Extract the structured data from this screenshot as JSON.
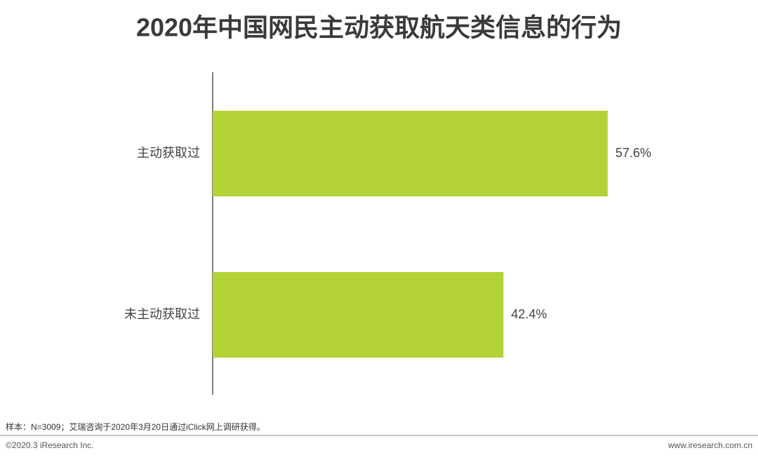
{
  "chart_data": {
    "type": "barh",
    "title": "2020年中国网民主动获取航天类信息的行为",
    "categories": [
      "主动获取过",
      "未主动获取过"
    ],
    "values": [
      57.6,
      42.4
    ],
    "value_labels": [
      "57.6%",
      "42.4%"
    ],
    "color": "#b2d235",
    "xlim": [
      0,
      70
    ],
    "note": "样本：N=3009；艾瑞咨询于2020年3月20日通过iClick网上调研获得。",
    "copyright": "©2020.3 iResearch Inc.",
    "website": "www.iresearch.com.cn"
  }
}
